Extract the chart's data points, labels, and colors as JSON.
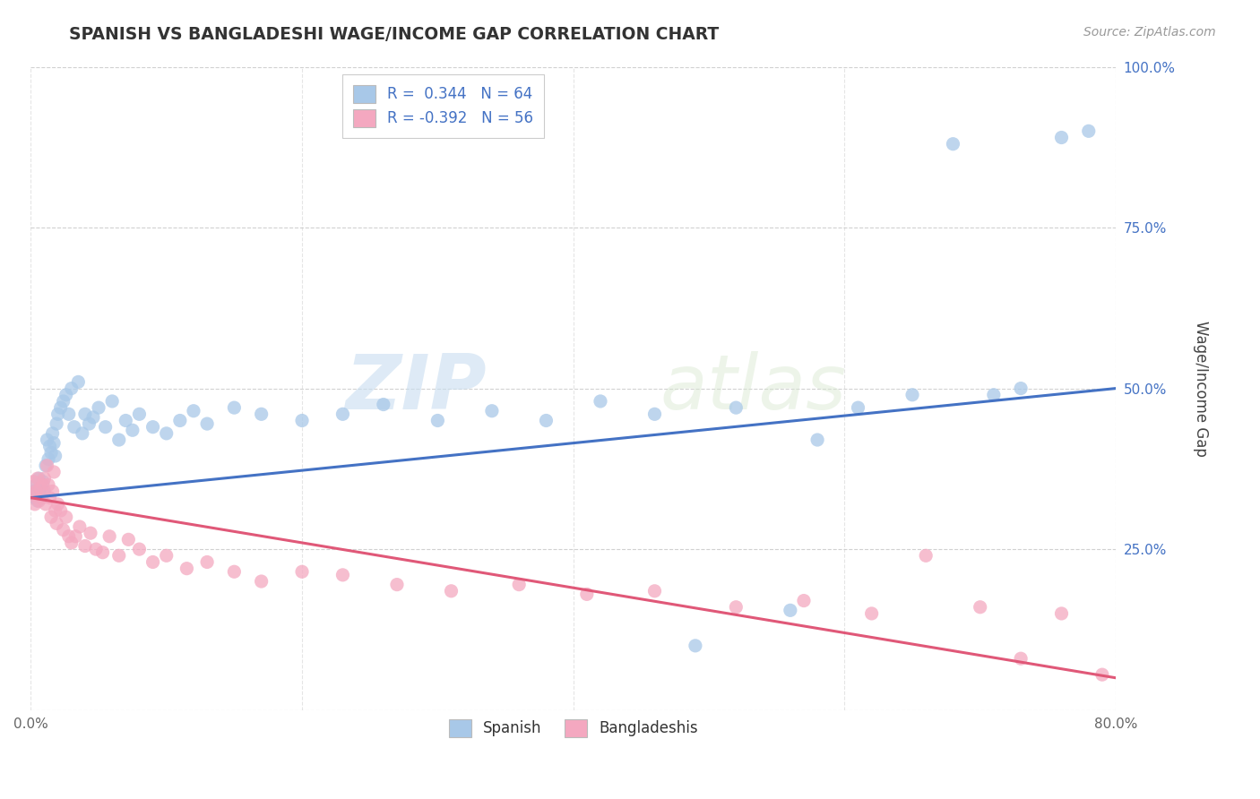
{
  "title": "SPANISH VS BANGLADESHI WAGE/INCOME GAP CORRELATION CHART",
  "source": "Source: ZipAtlas.com",
  "ylabel": "Wage/Income Gap",
  "xlim": [
    0.0,
    0.8
  ],
  "ylim": [
    0.0,
    1.0
  ],
  "xticks": [
    0.0,
    0.2,
    0.4,
    0.6,
    0.8
  ],
  "xticklabels": [
    "0.0%",
    "",
    "",
    "",
    "80.0%"
  ],
  "yticks": [
    0.0,
    0.25,
    0.5,
    0.75,
    1.0
  ],
  "yticklabels": [
    "",
    "25.0%",
    "50.0%",
    "75.0%",
    "100.0%"
  ],
  "spanish_R": 0.344,
  "spanish_N": 64,
  "bangladeshi_R": -0.392,
  "bangladeshi_N": 56,
  "spanish_color": "#a8c8e8",
  "bangladeshi_color": "#f4a8c0",
  "spanish_line_color": "#4472c4",
  "bangladeshi_line_color": "#e05878",
  "watermark_zip": "ZIP",
  "watermark_atlas": "atlas",
  "legend_spanish_label": "Spanish",
  "legend_bangladeshi_label": "Bangladeshis",
  "spanish_x": [
    0.001,
    0.002,
    0.003,
    0.004,
    0.005,
    0.006,
    0.007,
    0.008,
    0.009,
    0.01,
    0.011,
    0.012,
    0.013,
    0.014,
    0.015,
    0.016,
    0.017,
    0.018,
    0.019,
    0.02,
    0.022,
    0.024,
    0.026,
    0.028,
    0.03,
    0.032,
    0.035,
    0.038,
    0.04,
    0.043,
    0.046,
    0.05,
    0.055,
    0.06,
    0.065,
    0.07,
    0.075,
    0.08,
    0.09,
    0.1,
    0.11,
    0.12,
    0.13,
    0.15,
    0.17,
    0.2,
    0.23,
    0.26,
    0.3,
    0.34,
    0.38,
    0.42,
    0.46,
    0.49,
    0.52,
    0.56,
    0.58,
    0.61,
    0.65,
    0.68,
    0.71,
    0.73,
    0.76,
    0.78
  ],
  "spanish_y": [
    0.335,
    0.34,
    0.33,
    0.35,
    0.325,
    0.36,
    0.345,
    0.33,
    0.355,
    0.34,
    0.38,
    0.42,
    0.39,
    0.41,
    0.4,
    0.43,
    0.415,
    0.395,
    0.445,
    0.46,
    0.47,
    0.48,
    0.49,
    0.46,
    0.5,
    0.44,
    0.51,
    0.43,
    0.46,
    0.445,
    0.455,
    0.47,
    0.44,
    0.48,
    0.42,
    0.45,
    0.435,
    0.46,
    0.44,
    0.43,
    0.45,
    0.465,
    0.445,
    0.47,
    0.46,
    0.45,
    0.46,
    0.475,
    0.45,
    0.465,
    0.45,
    0.48,
    0.46,
    0.1,
    0.47,
    0.155,
    0.42,
    0.47,
    0.49,
    0.88,
    0.49,
    0.5,
    0.89,
    0.9
  ],
  "bangladeshi_x": [
    0.001,
    0.002,
    0.003,
    0.004,
    0.005,
    0.006,
    0.007,
    0.008,
    0.009,
    0.01,
    0.011,
    0.012,
    0.013,
    0.014,
    0.015,
    0.016,
    0.017,
    0.018,
    0.019,
    0.02,
    0.022,
    0.024,
    0.026,
    0.028,
    0.03,
    0.033,
    0.036,
    0.04,
    0.044,
    0.048,
    0.053,
    0.058,
    0.065,
    0.072,
    0.08,
    0.09,
    0.1,
    0.115,
    0.13,
    0.15,
    0.17,
    0.2,
    0.23,
    0.27,
    0.31,
    0.36,
    0.41,
    0.46,
    0.52,
    0.57,
    0.62,
    0.66,
    0.7,
    0.73,
    0.76,
    0.79
  ],
  "bangladeshi_y": [
    0.335,
    0.355,
    0.32,
    0.34,
    0.36,
    0.325,
    0.345,
    0.33,
    0.35,
    0.36,
    0.32,
    0.38,
    0.35,
    0.33,
    0.3,
    0.34,
    0.37,
    0.31,
    0.29,
    0.32,
    0.31,
    0.28,
    0.3,
    0.27,
    0.26,
    0.27,
    0.285,
    0.255,
    0.275,
    0.25,
    0.245,
    0.27,
    0.24,
    0.265,
    0.25,
    0.23,
    0.24,
    0.22,
    0.23,
    0.215,
    0.2,
    0.215,
    0.21,
    0.195,
    0.185,
    0.195,
    0.18,
    0.185,
    0.16,
    0.17,
    0.15,
    0.24,
    0.16,
    0.08,
    0.15,
    0.055
  ]
}
